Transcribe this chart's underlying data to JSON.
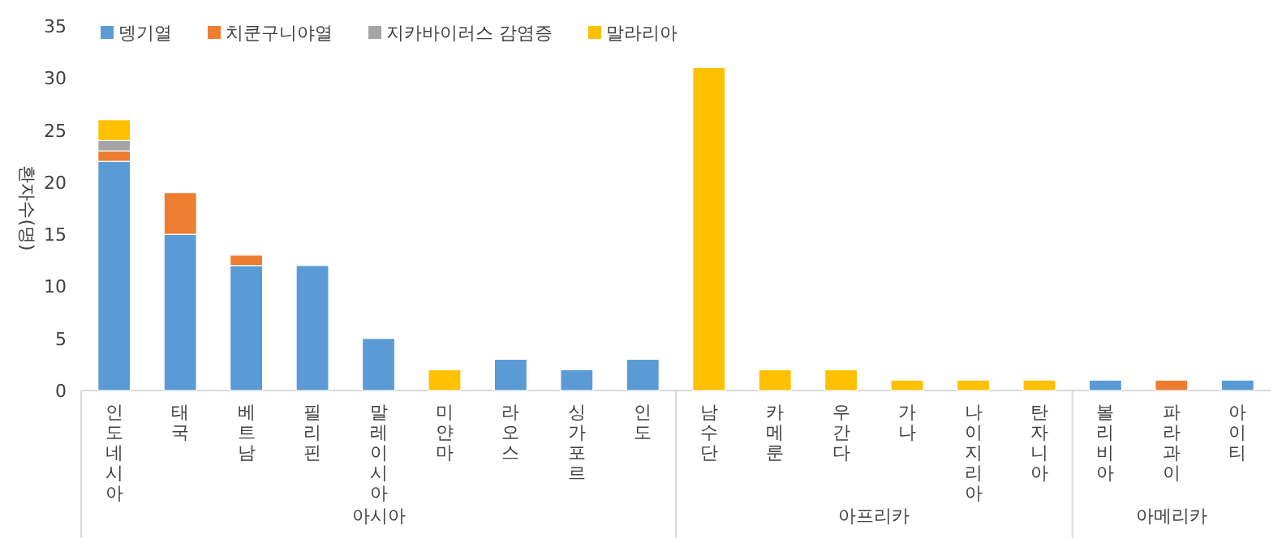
{
  "chart_data": {
    "type": "bar",
    "stacked": true,
    "ylabel": "환자수(명)",
    "legend": "top left",
    "categories": [
      "인도네시아",
      "태국",
      "베트남",
      "필리핀",
      "말레이시아",
      "미얀마",
      "라오스",
      "싱가포르",
      "인도",
      "남수단",
      "카메룬",
      "우간다",
      "가나",
      "나이지리아",
      "탄자니아",
      "볼리비아",
      "파라과이",
      "아이티"
    ],
    "series": [
      {
        "name": "뎅기열",
        "color": "#5b9bd5",
        "values": [
          22,
          15,
          12,
          12,
          5,
          0,
          3,
          2,
          3,
          0,
          0,
          0,
          0,
          0,
          0,
          1,
          0,
          1
        ]
      },
      {
        "name": "치쿤구니야열",
        "color": "#ed7d31",
        "values": [
          1,
          4,
          1,
          0,
          0,
          0,
          0,
          0,
          0,
          0,
          0,
          0,
          0,
          0,
          0,
          0,
          1,
          0
        ]
      },
      {
        "name": "지카바이러스 감염증",
        "color": "#a5a5a5",
        "values": [
          1,
          0,
          0,
          0,
          0,
          0,
          0,
          0,
          0,
          0,
          0,
          0,
          0,
          0,
          0,
          0,
          0,
          0
        ]
      },
      {
        "name": "말라리아",
        "color": "#ffc000",
        "values": [
          2,
          0,
          0,
          0,
          0,
          2,
          0,
          0,
          0,
          31,
          2,
          2,
          1,
          1,
          1,
          0,
          0,
          0
        ]
      }
    ],
    "ylim": [
      0,
      35
    ],
    "yticks": [
      0,
      5,
      10,
      15,
      20,
      25,
      30,
      35
    ],
    "annotations": [
      "아시아",
      "아프리카",
      "아메리카"
    ]
  }
}
